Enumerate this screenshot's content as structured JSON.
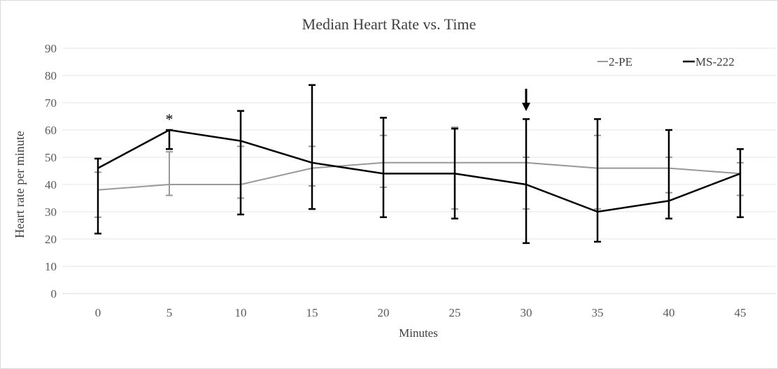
{
  "chart_data": {
    "type": "line",
    "title": "Median Heart Rate vs. Time",
    "xlabel": "Minutes",
    "ylabel": "Heart rate per minute",
    "x": [
      0,
      5,
      10,
      15,
      20,
      25,
      30,
      35,
      40,
      45
    ],
    "ylim": [
      0,
      90
    ],
    "yticks": [
      0,
      10,
      20,
      30,
      40,
      50,
      60,
      70,
      80,
      90
    ],
    "grid": true,
    "legend_position": "top-right",
    "series": [
      {
        "name": "2-PE",
        "color": "#999999",
        "values": [
          38,
          40,
          40,
          46,
          48,
          48,
          48,
          46,
          46,
          44
        ],
        "error_low": [
          28,
          36,
          35,
          39.5,
          39,
          31,
          31,
          31,
          37,
          36
        ],
        "error_high": [
          44.5,
          52,
          54,
          54,
          58,
          61,
          50,
          58,
          50,
          48
        ]
      },
      {
        "name": "MS-222",
        "color": "#000000",
        "values": [
          46,
          60,
          56,
          48,
          44,
          44,
          40,
          30,
          34,
          44
        ],
        "error_low": [
          22,
          53,
          29,
          31,
          28,
          27.5,
          18.5,
          19,
          27.5,
          28
        ],
        "error_high": [
          49.5,
          60,
          67,
          76.5,
          64.5,
          60.5,
          64,
          64,
          60,
          53
        ]
      }
    ],
    "annotations": [
      {
        "type": "text",
        "text": "*",
        "x": 5
      },
      {
        "type": "arrow",
        "direction": "down",
        "x": 30
      }
    ]
  }
}
